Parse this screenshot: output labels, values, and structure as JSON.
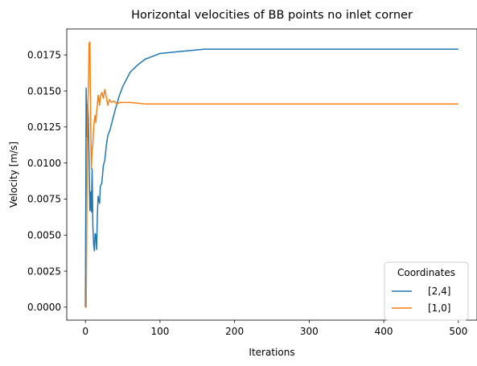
{
  "chart_data": {
    "type": "line",
    "title": "Horizontal velocities of BB points no inlet corner",
    "xlabel": "Iterations",
    "ylabel": "Velocity [m/s]",
    "xlim": [
      -25,
      525
    ],
    "ylim": [
      -0.0009,
      0.0193
    ],
    "x_ticks": [
      0,
      100,
      200,
      300,
      400,
      500
    ],
    "x_tick_labels": [
      "0",
      "100",
      "200",
      "300",
      "400",
      "500"
    ],
    "y_ticks": [
      0,
      0.0025,
      0.005,
      0.0075,
      0.01,
      0.0125,
      0.015,
      0.0175
    ],
    "y_tick_labels": [
      "0.0000",
      "0.0025",
      "0.0050",
      "0.0075",
      "0.0100",
      "0.0125",
      "0.0150",
      "0.0175"
    ],
    "grid": false,
    "legend": {
      "title": "Coordinates",
      "placement": "lower-right"
    },
    "series": [
      {
        "name": "[2,4]",
        "color": "#1f77b4",
        "points": [
          [
            0,
            0.0
          ],
          [
            1,
            0.0152
          ],
          [
            2,
            0.0118
          ],
          [
            3,
            0.0141
          ],
          [
            4,
            0.0131
          ],
          [
            5,
            0.0098
          ],
          [
            6,
            0.0067
          ],
          [
            7,
            0.008
          ],
          [
            8,
            0.0066
          ],
          [
            9,
            0.0096
          ],
          [
            10,
            0.0056
          ],
          [
            11,
            0.0044
          ],
          [
            12,
            0.0039
          ],
          [
            13,
            0.0051
          ],
          [
            14,
            0.005
          ],
          [
            15,
            0.004
          ],
          [
            16,
            0.0063
          ],
          [
            17,
            0.0077
          ],
          [
            18,
            0.0074
          ],
          [
            19,
            0.0072
          ],
          [
            20,
            0.0084
          ],
          [
            22,
            0.0086
          ],
          [
            24,
            0.0098
          ],
          [
            26,
            0.0102
          ],
          [
            28,
            0.0112
          ],
          [
            30,
            0.0119
          ],
          [
            33,
            0.0123
          ],
          [
            36,
            0.0129
          ],
          [
            40,
            0.0137
          ],
          [
            45,
            0.0146
          ],
          [
            50,
            0.0153
          ],
          [
            60,
            0.0163
          ],
          [
            70,
            0.0168
          ],
          [
            80,
            0.0172
          ],
          [
            90,
            0.0174
          ],
          [
            100,
            0.0176
          ],
          [
            120,
            0.0177
          ],
          [
            140,
            0.0178
          ],
          [
            160,
            0.0179
          ],
          [
            200,
            0.0179
          ],
          [
            300,
            0.0179
          ],
          [
            400,
            0.0179
          ],
          [
            500,
            0.0179
          ]
        ]
      },
      {
        "name": "[1,0]",
        "color": "#ff7f0e",
        "points": [
          [
            0,
            0.0
          ],
          [
            1,
            0.0
          ],
          [
            2,
            0.0071
          ],
          [
            3,
            0.0138
          ],
          [
            4,
            0.0151
          ],
          [
            5,
            0.0183
          ],
          [
            6,
            0.0184
          ],
          [
            7,
            0.0129
          ],
          [
            8,
            0.0096
          ],
          [
            9,
            0.011
          ],
          [
            10,
            0.0113
          ],
          [
            11,
            0.0124
          ],
          [
            12,
            0.013
          ],
          [
            13,
            0.0133
          ],
          [
            14,
            0.0128
          ],
          [
            15,
            0.0136
          ],
          [
            16,
            0.014
          ],
          [
            17,
            0.0147
          ],
          [
            18,
            0.0144
          ],
          [
            19,
            0.014
          ],
          [
            20,
            0.0146
          ],
          [
            22,
            0.0149
          ],
          [
            24,
            0.0145
          ],
          [
            26,
            0.0151
          ],
          [
            28,
            0.0146
          ],
          [
            30,
            0.014
          ],
          [
            32,
            0.0144
          ],
          [
            35,
            0.0142
          ],
          [
            38,
            0.0143
          ],
          [
            42,
            0.0141
          ],
          [
            46,
            0.0142
          ],
          [
            50,
            0.0142
          ],
          [
            60,
            0.0142
          ],
          [
            80,
            0.0141
          ],
          [
            100,
            0.0141
          ],
          [
            150,
            0.0141
          ],
          [
            200,
            0.0141
          ],
          [
            300,
            0.0141
          ],
          [
            400,
            0.0141
          ],
          [
            500,
            0.0141
          ]
        ]
      }
    ]
  }
}
